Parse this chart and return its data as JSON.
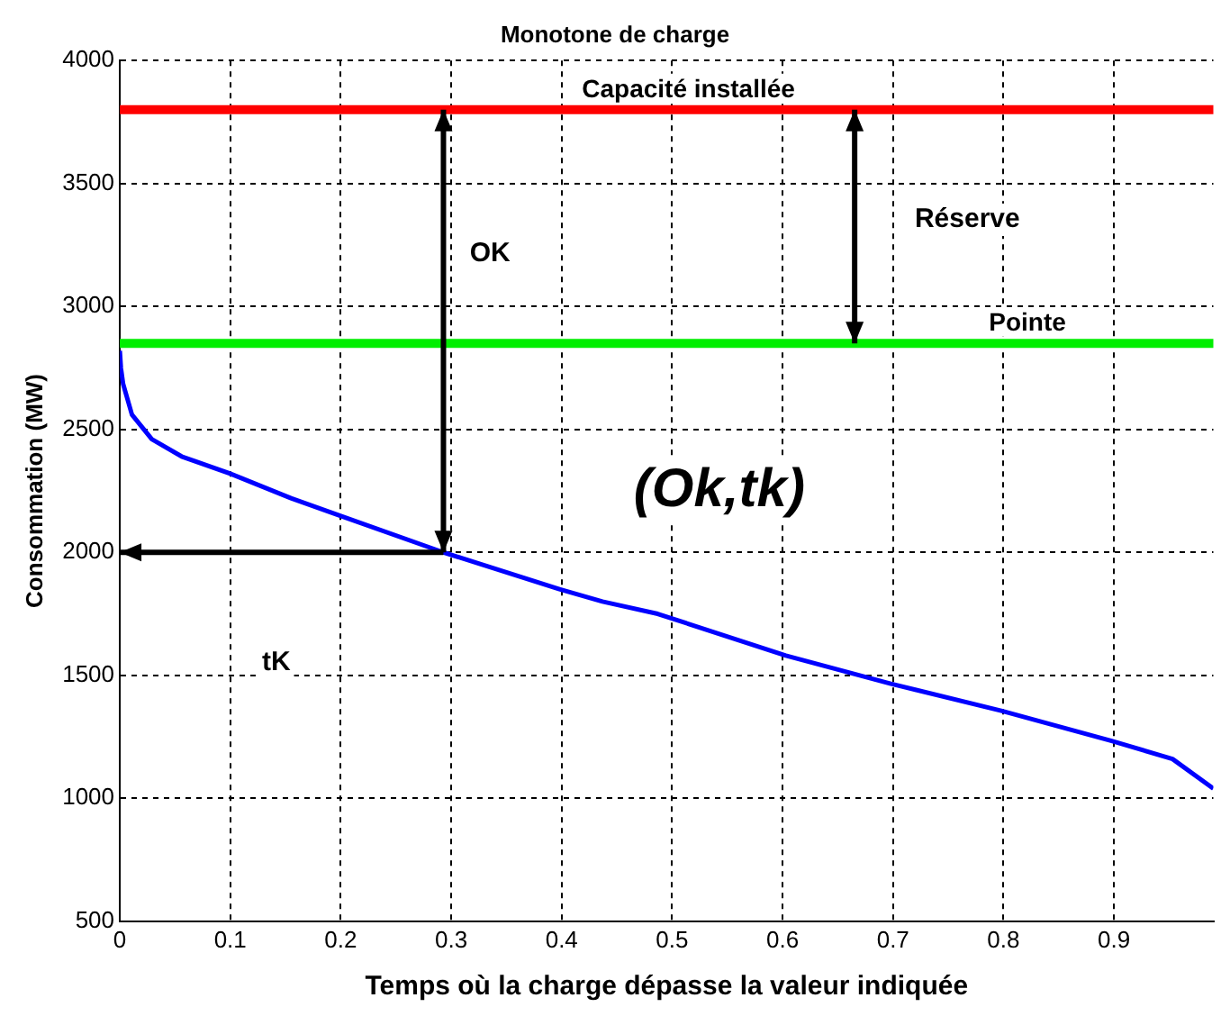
{
  "chart_data": {
    "type": "line",
    "title": "Monotone de charge",
    "xlabel": "Temps où la charge dépasse la valeur indiquée",
    "ylabel": "Consommation (MW)",
    "x": [
      0,
      0.001,
      0.003,
      0.011,
      0.029,
      0.056,
      0.1,
      0.155,
      0.199,
      0.293,
      0.398,
      0.437,
      0.487,
      0.603,
      0.698,
      0.798,
      0.898,
      0.953,
      0.99
    ],
    "series": [
      {
        "color": "#0000ff",
        "values": [
          2820,
          2750,
          2685,
          2560,
          2460,
          2390,
          2320,
          2220,
          2150,
          2000,
          1850,
          1800,
          1750,
          1580,
          1466,
          1356,
          1233,
          1160,
          1040
        ]
      }
    ],
    "xlim": [
      0,
      0.99
    ],
    "xticks": [
      0,
      0.1,
      0.2,
      0.3,
      0.4,
      0.5,
      0.6,
      0.7,
      0.8,
      0.9
    ],
    "ylim": [
      500,
      4000
    ],
    "yticks": [
      500,
      1000,
      1500,
      2000,
      2500,
      3000,
      3500,
      4000
    ],
    "grid": true,
    "legend": false,
    "marker": "none",
    "line_style": "solid",
    "ref_lines": [
      {
        "axis": "y",
        "value": 3800,
        "label": "Capacité installée",
        "color": "#ff0000"
      },
      {
        "axis": "y",
        "value": 2850,
        "label": "Pointe",
        "color": "#00ee00"
      }
    ],
    "annotations": [
      "(Ok,tk)",
      "OK",
      "tK",
      "Réserve"
    ]
  }
}
